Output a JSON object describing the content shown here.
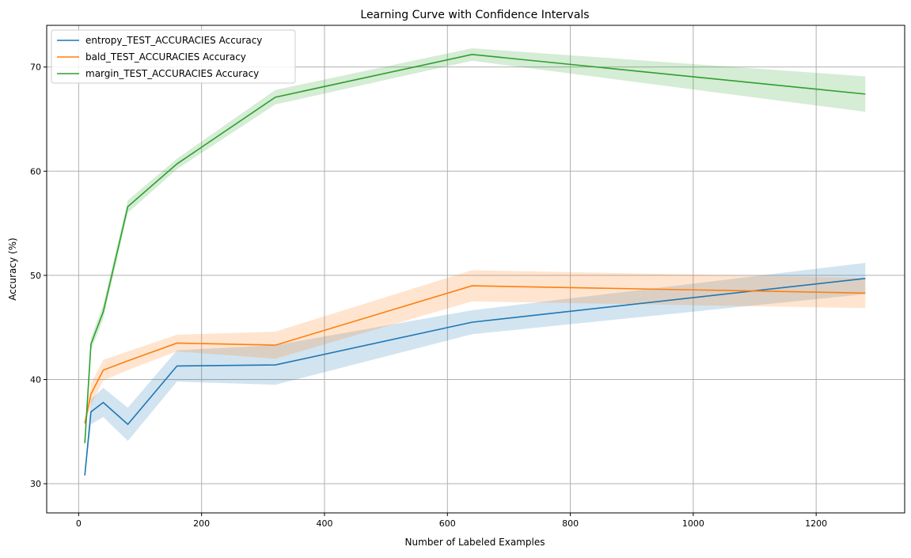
{
  "chart_data": {
    "type": "line",
    "title": "Learning Curve with Confidence Intervals",
    "xlabel": "Number of Labeled Examples",
    "ylabel": "Accuracy (%)",
    "xlim": [
      -52,
      1344
    ],
    "ylim": [
      27.2,
      74.0
    ],
    "xticks": [
      0,
      200,
      400,
      600,
      800,
      1000,
      1200
    ],
    "yticks": [
      30,
      40,
      50,
      60,
      70
    ],
    "grid": true,
    "legend_position": "top-left",
    "x": [
      10,
      20,
      40,
      80,
      160,
      320,
      640,
      1280
    ],
    "series": [
      {
        "name": "entropy_TEST_ACCURACIES Accuracy",
        "color": "#1f77b4",
        "values": [
          30.8,
          36.9,
          37.8,
          35.7,
          41.3,
          41.4,
          45.5,
          49.7
        ],
        "ci": [
          0.3,
          1.2,
          1.4,
          1.6,
          1.5,
          1.9,
          1.15,
          1.5
        ]
      },
      {
        "name": "bald_TEST_ACCURACIES Accuracy",
        "color": "#ff7f0e",
        "values": [
          35.8,
          38.6,
          40.9,
          41.8,
          43.5,
          43.3,
          49.0,
          48.3
        ],
        "ci": [
          0.3,
          1.0,
          1.0,
          0.9,
          0.8,
          1.3,
          1.5,
          1.45
        ]
      },
      {
        "name": "margin_TEST_ACCURACIES Accuracy",
        "color": "#2ca02c",
        "values": [
          33.9,
          43.4,
          46.5,
          56.6,
          60.7,
          67.1,
          71.2,
          67.4
        ],
        "ci": [
          0.3,
          0.6,
          0.7,
          0.6,
          0.5,
          0.7,
          0.6,
          1.7
        ]
      }
    ]
  }
}
